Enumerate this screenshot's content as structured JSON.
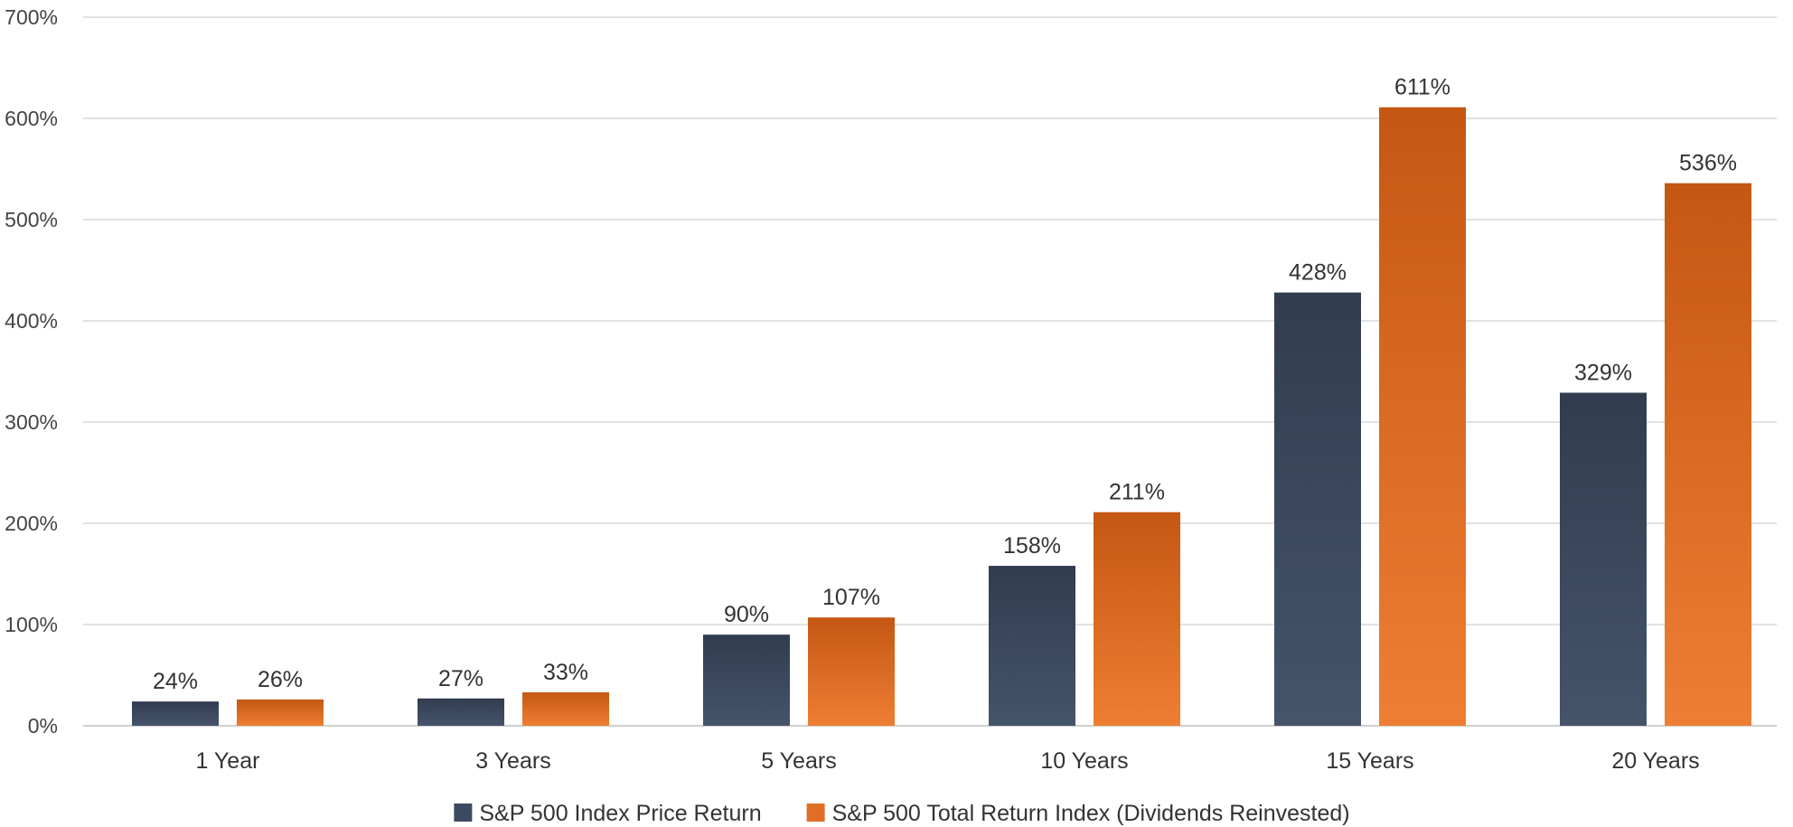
{
  "chart_data": {
    "type": "bar",
    "categories": [
      "1 Year",
      "3 Years",
      "5 Years",
      "10 Years",
      "15 Years",
      "20 Years"
    ],
    "series": [
      {
        "name": "S&P 500 Index Price Return",
        "values": [
          24,
          27,
          90,
          158,
          428,
          329
        ],
        "labels": [
          "24%",
          "27%",
          "90%",
          "158%",
          "428%",
          "329%"
        ],
        "color": "#3b4a60",
        "color_top": "#313c4f",
        "color_bottom": "#45546b"
      },
      {
        "name": "S&P 500 Total Return Index (Dividends Reinvested)",
        "values": [
          26,
          33,
          107,
          211,
          611,
          536
        ],
        "labels": [
          "26%",
          "33%",
          "107%",
          "211%",
          "611%",
          "536%"
        ],
        "color": "#e06e24",
        "color_top": "#c45712",
        "color_bottom": "#ee7e33"
      }
    ],
    "ylim": [
      0,
      700
    ],
    "yticks": [
      0,
      100,
      200,
      300,
      400,
      500,
      600,
      700
    ],
    "ytick_labels": [
      "0%",
      "100%",
      "200%",
      "300%",
      "400%",
      "500%",
      "600%",
      "700%"
    ],
    "grid": true,
    "legend_position": "bottom-center"
  }
}
